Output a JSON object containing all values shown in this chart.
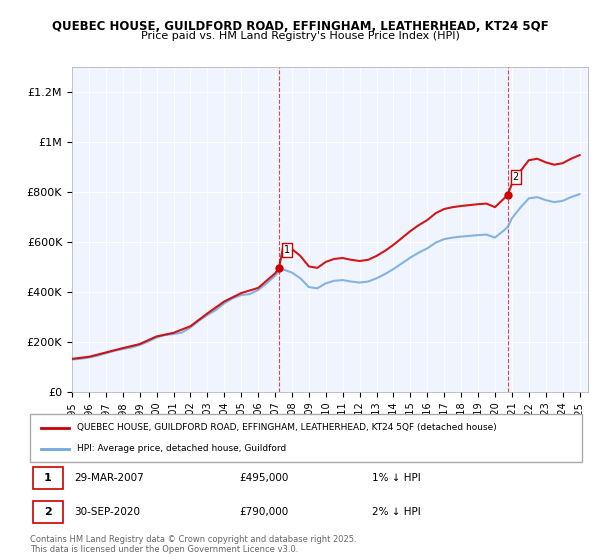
{
  "title_line1": "QUEBEC HOUSE, GUILDFORD ROAD, EFFINGHAM, LEATHERHEAD, KT24 5QF",
  "title_line2": "Price paid vs. HM Land Registry's House Price Index (HPI)",
  "ylabel_ticks": [
    "£0",
    "£200K",
    "£400K",
    "£600K",
    "£800K",
    "£1M",
    "£1.2M"
  ],
  "ytick_values": [
    0,
    200000,
    400000,
    600000,
    800000,
    1000000,
    1200000
  ],
  "ylim": [
    0,
    1300000
  ],
  "xlim_start": 1995.0,
  "xlim_end": 2025.5,
  "xtick_years": [
    1995,
    1996,
    1997,
    1998,
    1999,
    2000,
    2001,
    2002,
    2003,
    2004,
    2005,
    2006,
    2007,
    2008,
    2009,
    2010,
    2011,
    2012,
    2013,
    2014,
    2015,
    2016,
    2017,
    2018,
    2019,
    2020,
    2021,
    2022,
    2023,
    2024,
    2025
  ],
  "hpi_color": "#6fa8dc",
  "price_color": "#cc0000",
  "marker1_x": 2007.23,
  "marker1_y": 495000,
  "marker2_x": 2020.75,
  "marker2_y": 790000,
  "vline1_x": 2007.23,
  "vline2_x": 2020.75,
  "bg_color": "#f0f4ff",
  "legend_label1": "QUEBEC HOUSE, GUILDFORD ROAD, EFFINGHAM, LEATHERHEAD, KT24 5QF (detached house)",
  "legend_label2": "HPI: Average price, detached house, Guildford",
  "annotation1_label": "1",
  "annotation2_label": "2",
  "note1_text": "1    29-MAR-2007         £495,000         1% ↓ HPI",
  "note2_text": "2    30-SEP-2020           £790,000         2% ↓ HPI",
  "footer_text": "Contains HM Land Registry data © Crown copyright and database right 2025.\nThis data is licensed under the Open Government Licence v3.0.",
  "hpi_line_alpha": 0.85,
  "price_line_alpha": 0.9
}
